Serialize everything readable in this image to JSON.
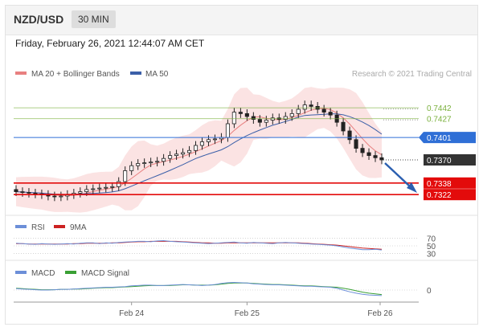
{
  "header": {
    "pair": "NZD/USD",
    "interval": "30 MIN",
    "datetime": "Friday, February 26, 2021 12:44:07 AM CET"
  },
  "legend": {
    "ma20_bb": "MA 20 + Bollinger Bands",
    "ma50": "MA 50",
    "research": "Research © 2021 Trading Central",
    "rsi": "RSI",
    "rsi_ma": "9MA",
    "macd": "MACD",
    "macd_signal": "MACD Signal"
  },
  "colors": {
    "bb_band": "#f4b0b0",
    "ma20": "#e88080",
    "ma50": "#3b5fa8",
    "current_price": "#333333",
    "resistance": "#7ab03c",
    "pivot": "#2f6fd6",
    "support": "#e30b0b",
    "arrow": "#2b5fb0",
    "rsi": "#6c8fd8",
    "rsi_ma": "#cc2222",
    "macd": "#6c8fd8",
    "macd_signal": "#3aa035"
  },
  "chart_data": [
    {
      "type": "candlestick",
      "ylim": [
        0.73,
        0.746
      ],
      "x_ticks": [
        "Feb 24",
        "Feb 25",
        "Feb 26"
      ],
      "close_series": [
        0.7326,
        0.7325,
        0.7324,
        0.7323,
        0.7322,
        0.732,
        0.7319,
        0.732,
        0.7322,
        0.7324,
        0.7326,
        0.7329,
        0.733,
        0.7331,
        0.7332,
        0.7333,
        0.734,
        0.7355,
        0.7362,
        0.7365,
        0.7366,
        0.7367,
        0.7368,
        0.7372,
        0.7376,
        0.7378,
        0.738,
        0.7383,
        0.739,
        0.7395,
        0.7398,
        0.7399,
        0.7401,
        0.742,
        0.7436,
        0.7434,
        0.743,
        0.7426,
        0.7422,
        0.7425,
        0.7428,
        0.7426,
        0.743,
        0.7434,
        0.744,
        0.7446,
        0.7444,
        0.744,
        0.7436,
        0.7432,
        0.7422,
        0.741,
        0.7398,
        0.7386,
        0.738,
        0.7376,
        0.7373,
        0.737
      ],
      "levels": [
        {
          "value": 0.7442,
          "label": "0.7442",
          "kind": "resistance"
        },
        {
          "value": 0.7427,
          "label": "0.7427",
          "kind": "resistance"
        },
        {
          "value": 0.7401,
          "label": "0.7401",
          "kind": "pivot"
        },
        {
          "value": 0.737,
          "label": "0.7370",
          "kind": "current"
        },
        {
          "value": 0.7338,
          "label": "0.7338",
          "kind": "support"
        },
        {
          "value": 0.7322,
          "label": "0.7322",
          "kind": "support"
        }
      ]
    },
    {
      "type": "line",
      "name": "RSI",
      "ylim": [
        20,
        80
      ],
      "ticks": [
        "70",
        "50",
        "30"
      ],
      "rsi": [
        57,
        56,
        55,
        54,
        56,
        55,
        54,
        55,
        56,
        55,
        57,
        58,
        58,
        56,
        58,
        57,
        59,
        60,
        61,
        62,
        62,
        61,
        63,
        64,
        62,
        61,
        60,
        59,
        58,
        57,
        56,
        57,
        58,
        59,
        60,
        58,
        57,
        59,
        58,
        57,
        56,
        58,
        59,
        58,
        57,
        56,
        55,
        54,
        53,
        52,
        50,
        47,
        44,
        42,
        40,
        40,
        41,
        39
      ],
      "rsi_ma": [
        56,
        56,
        55,
        55,
        55,
        55,
        55,
        55,
        55,
        56,
        56,
        57,
        57,
        57,
        57,
        58,
        58,
        59,
        60,
        61,
        61,
        62,
        62,
        62,
        62,
        62,
        61,
        60,
        59,
        58,
        58,
        57,
        57,
        58,
        58,
        58,
        58,
        58,
        58,
        58,
        58,
        58,
        58,
        58,
        58,
        57,
        56,
        55,
        54,
        53,
        52,
        50,
        48,
        46,
        44,
        43,
        42,
        41
      ]
    },
    {
      "type": "line",
      "name": "MACD",
      "ticks": [
        "0"
      ],
      "ylim": [
        -0.003,
        0.003
      ],
      "macd": [
        0.0004,
        0.0003,
        0.0002,
        0.0001,
        0.0,
        0.0,
        0.0001,
        0.0002,
        0.0002,
        0.0003,
        0.0004,
        0.0005,
        0.0006,
        0.0007,
        0.0008,
        0.0008,
        0.0009,
        0.001,
        0.0012,
        0.0013,
        0.0014,
        0.0014,
        0.0013,
        0.0013,
        0.0014,
        0.0015,
        0.0016,
        0.0015,
        0.0014,
        0.0013,
        0.0014,
        0.0016,
        0.0019,
        0.0021,
        0.0022,
        0.0021,
        0.002,
        0.0018,
        0.0017,
        0.0016,
        0.0015,
        0.0015,
        0.0014,
        0.0013,
        0.0012,
        0.0011,
        0.0011,
        0.001,
        0.0009,
        0.0008,
        0.0005,
        0.0,
        -0.0005,
        -0.0009,
        -0.0012,
        -0.0014,
        -0.0015,
        -0.0016
      ],
      "macd_signal": [
        0.0005,
        0.0004,
        0.0003,
        0.0002,
        0.0001,
        0.0001,
        0.0001,
        0.0002,
        0.0002,
        0.0003,
        0.0003,
        0.0004,
        0.0005,
        0.0006,
        0.0007,
        0.0007,
        0.0008,
        0.0009,
        0.001,
        0.0011,
        0.0012,
        0.0013,
        0.0013,
        0.0013,
        0.0013,
        0.0014,
        0.0015,
        0.0015,
        0.0014,
        0.0014,
        0.0014,
        0.0015,
        0.0017,
        0.0019,
        0.002,
        0.002,
        0.002,
        0.0019,
        0.0018,
        0.0017,
        0.0016,
        0.0016,
        0.0015,
        0.0014,
        0.0013,
        0.0012,
        0.0012,
        0.0011,
        0.001,
        0.0009,
        0.0008,
        0.0005,
        0.0002,
        -0.0002,
        -0.0006,
        -0.0009,
        -0.0011,
        -0.0013
      ]
    }
  ]
}
